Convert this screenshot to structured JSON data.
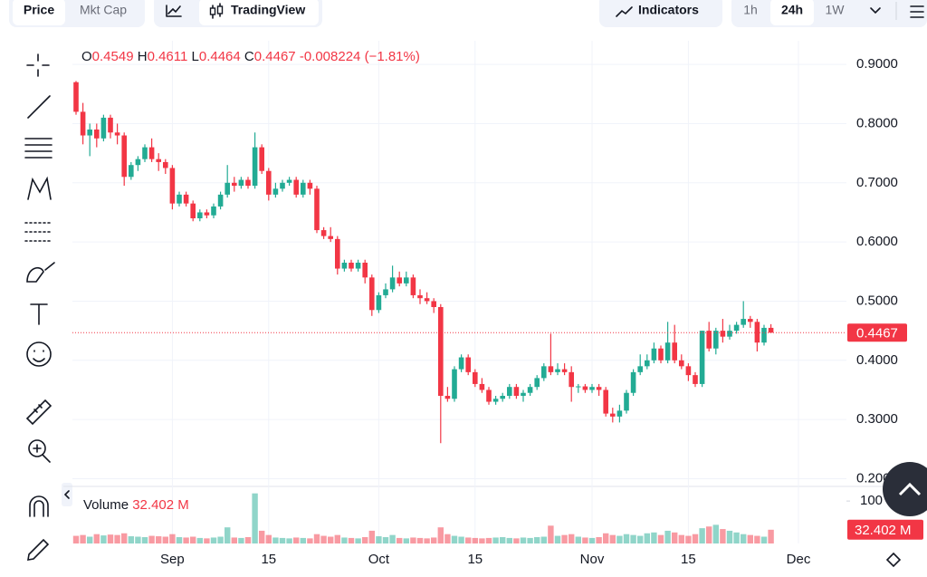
{
  "toolbar": {
    "tabs": [
      "Price",
      "Mkt Cap"
    ],
    "tradingview": "TradingView",
    "indicators": "Indicators",
    "intervals": [
      "1h",
      "24h",
      "1W"
    ]
  },
  "chart_data": {
    "type": "candlestick",
    "categories": [
      null,
      null,
      null,
      null,
      null,
      null,
      null,
      null,
      null,
      null,
      null,
      null,
      null,
      null,
      "Sep",
      null,
      null,
      null,
      null,
      null,
      null,
      null,
      null,
      null,
      null,
      null,
      null,
      null,
      "15",
      null,
      null,
      null,
      null,
      null,
      null,
      null,
      null,
      null,
      null,
      null,
      null,
      null,
      null,
      null,
      "Oct",
      null,
      null,
      null,
      null,
      null,
      null,
      null,
      null,
      null,
      null,
      null,
      null,
      null,
      "15",
      null,
      null,
      null,
      null,
      null,
      null,
      null,
      null,
      null,
      null,
      null,
      null,
      null,
      null,
      null,
      null,
      "Nov",
      null,
      null,
      null,
      null,
      null,
      null,
      null,
      null,
      null,
      null,
      null,
      null,
      null,
      "15",
      null,
      null,
      null,
      null,
      null,
      null,
      null,
      null,
      null,
      null,
      null,
      null,
      null,
      null,
      null,
      "Dec"
    ],
    "ohlc": [
      [
        0.87,
        0.872,
        0.815,
        0.82
      ],
      [
        0.82,
        0.835,
        0.765,
        0.78
      ],
      [
        0.78,
        0.8,
        0.745,
        0.79
      ],
      [
        0.79,
        0.8,
        0.76,
        0.775
      ],
      [
        0.775,
        0.815,
        0.77,
        0.81
      ],
      [
        0.81,
        0.815,
        0.775,
        0.785
      ],
      [
        0.785,
        0.8,
        0.765,
        0.78
      ],
      [
        0.78,
        0.785,
        0.695,
        0.71
      ],
      [
        0.71,
        0.735,
        0.705,
        0.73
      ],
      [
        0.73,
        0.745,
        0.72,
        0.74
      ],
      [
        0.74,
        0.765,
        0.735,
        0.76
      ],
      [
        0.76,
        0.775,
        0.735,
        0.74
      ],
      [
        0.74,
        0.75,
        0.72,
        0.735
      ],
      [
        0.735,
        0.74,
        0.715,
        0.725
      ],
      [
        0.725,
        0.73,
        0.655,
        0.665
      ],
      [
        0.665,
        0.685,
        0.66,
        0.68
      ],
      [
        0.68,
        0.685,
        0.66,
        0.665
      ],
      [
        0.665,
        0.67,
        0.635,
        0.64
      ],
      [
        0.64,
        0.655,
        0.635,
        0.65
      ],
      [
        0.65,
        0.655,
        0.64,
        0.645
      ],
      [
        0.645,
        0.665,
        0.64,
        0.66
      ],
      [
        0.66,
        0.685,
        0.655,
        0.68
      ],
      [
        0.68,
        0.73,
        0.675,
        0.7
      ],
      [
        0.7,
        0.71,
        0.685,
        0.695
      ],
      [
        0.695,
        0.71,
        0.69,
        0.705
      ],
      [
        0.705,
        0.71,
        0.69,
        0.695
      ],
      [
        0.695,
        0.785,
        0.69,
        0.76
      ],
      [
        0.76,
        0.765,
        0.715,
        0.72
      ],
      [
        0.72,
        0.725,
        0.67,
        0.68
      ],
      [
        0.68,
        0.7,
        0.675,
        0.69
      ],
      [
        0.69,
        0.705,
        0.685,
        0.7
      ],
      [
        0.7,
        0.71,
        0.695,
        0.705
      ],
      [
        0.705,
        0.71,
        0.675,
        0.68
      ],
      [
        0.68,
        0.705,
        0.675,
        0.7
      ],
      [
        0.7,
        0.705,
        0.68,
        0.69
      ],
      [
        0.69,
        0.695,
        0.615,
        0.62
      ],
      [
        0.62,
        0.625,
        0.605,
        0.61
      ],
      [
        0.61,
        0.625,
        0.6,
        0.605
      ],
      [
        0.605,
        0.61,
        0.545,
        0.555
      ],
      [
        0.555,
        0.57,
        0.55,
        0.565
      ],
      [
        0.565,
        0.57,
        0.55,
        0.555
      ],
      [
        0.555,
        0.57,
        0.55,
        0.565
      ],
      [
        0.565,
        0.57,
        0.53,
        0.54
      ],
      [
        0.54,
        0.545,
        0.475,
        0.485
      ],
      [
        0.485,
        0.515,
        0.48,
        0.51
      ],
      [
        0.51,
        0.53,
        0.505,
        0.52
      ],
      [
        0.52,
        0.56,
        0.515,
        0.54
      ],
      [
        0.54,
        0.55,
        0.525,
        0.53
      ],
      [
        0.53,
        0.55,
        0.525,
        0.54
      ],
      [
        0.54,
        0.545,
        0.505,
        0.51
      ],
      [
        0.51,
        0.52,
        0.495,
        0.505
      ],
      [
        0.505,
        0.515,
        0.495,
        0.5
      ],
      [
        0.5,
        0.505,
        0.48,
        0.49
      ],
      [
        0.49,
        0.495,
        0.26,
        0.34
      ],
      [
        0.34,
        0.355,
        0.33,
        0.335
      ],
      [
        0.335,
        0.39,
        0.33,
        0.385
      ],
      [
        0.385,
        0.41,
        0.38,
        0.405
      ],
      [
        0.405,
        0.41,
        0.375,
        0.38
      ],
      [
        0.38,
        0.385,
        0.355,
        0.36
      ],
      [
        0.36,
        0.37,
        0.345,
        0.35
      ],
      [
        0.35,
        0.355,
        0.325,
        0.33
      ],
      [
        0.33,
        0.34,
        0.325,
        0.335
      ],
      [
        0.335,
        0.345,
        0.33,
        0.34
      ],
      [
        0.34,
        0.36,
        0.335,
        0.355
      ],
      [
        0.355,
        0.36,
        0.335,
        0.34
      ],
      [
        0.34,
        0.35,
        0.33,
        0.345
      ],
      [
        0.345,
        0.36,
        0.34,
        0.355
      ],
      [
        0.355,
        0.375,
        0.35,
        0.37
      ],
      [
        0.37,
        0.395,
        0.365,
        0.39
      ],
      [
        0.39,
        0.445,
        0.375,
        0.38
      ],
      [
        0.38,
        0.395,
        0.375,
        0.385
      ],
      [
        0.385,
        0.395,
        0.375,
        0.38
      ],
      [
        0.38,
        0.39,
        0.33,
        0.355
      ],
      [
        0.355,
        0.36,
        0.345,
        0.356
      ],
      [
        0.356,
        0.36,
        0.345,
        0.35
      ],
      [
        0.35,
        0.36,
        0.345,
        0.355
      ],
      [
        0.355,
        0.36,
        0.34,
        0.35
      ],
      [
        0.35,
        0.355,
        0.305,
        0.31
      ],
      [
        0.31,
        0.32,
        0.295,
        0.305
      ],
      [
        0.305,
        0.325,
        0.295,
        0.315
      ],
      [
        0.315,
        0.35,
        0.31,
        0.345
      ],
      [
        0.345,
        0.385,
        0.34,
        0.38
      ],
      [
        0.38,
        0.41,
        0.375,
        0.39
      ],
      [
        0.39,
        0.41,
        0.385,
        0.4
      ],
      [
        0.4,
        0.43,
        0.395,
        0.42
      ],
      [
        0.42,
        0.425,
        0.395,
        0.4
      ],
      [
        0.4,
        0.465,
        0.395,
        0.43
      ],
      [
        0.43,
        0.46,
        0.395,
        0.4
      ],
      [
        0.4,
        0.41,
        0.385,
        0.39
      ],
      [
        0.39,
        0.395,
        0.365,
        0.375
      ],
      [
        0.375,
        0.38,
        0.355,
        0.36
      ],
      [
        0.36,
        0.45,
        0.355,
        0.45
      ],
      [
        0.45,
        0.465,
        0.415,
        0.42
      ],
      [
        0.42,
        0.455,
        0.41,
        0.45
      ],
      [
        0.45,
        0.47,
        0.43,
        0.44
      ],
      [
        0.44,
        0.46,
        0.435,
        0.45
      ],
      [
        0.45,
        0.465,
        0.445,
        0.46
      ],
      [
        0.46,
        0.5,
        0.455,
        0.47
      ],
      [
        0.47,
        0.475,
        0.455,
        0.465
      ],
      [
        0.465,
        0.47,
        0.415,
        0.43
      ],
      [
        0.43,
        0.46,
        0.425,
        0.4549
      ],
      [
        0.4549,
        0.4611,
        0.4464,
        0.4467
      ],
      null,
      null,
      null,
      null
    ],
    "up_color": "#22ab94",
    "down_color": "#f23645",
    "ylim": [
      0.19,
      0.94
    ],
    "yticks": [
      {
        "value": 0.2,
        "label": "0.2000"
      },
      {
        "value": 0.3,
        "label": "0.3000"
      },
      {
        "value": 0.4,
        "label": "0.4000"
      },
      {
        "value": 0.5,
        "label": "0.5000"
      },
      {
        "value": 0.6,
        "label": "0.6000"
      },
      {
        "value": 0.7,
        "label": "0.7000"
      },
      {
        "value": 0.8,
        "label": "0.8000"
      },
      {
        "value": 0.9,
        "label": "0.9000"
      }
    ],
    "grid": true,
    "last_price": {
      "value": 0.4467,
      "label": "0.4467"
    },
    "legend": {
      "open_label": "O",
      "open": 0.4549,
      "high_label": "H",
      "high": 0.4611,
      "low_label": "L",
      "low": 0.4464,
      "close_label": "C",
      "close": 0.4467,
      "change": -0.008224,
      "change_pct": "(−1.81%)"
    },
    "volume": {
      "title": "Volume",
      "values": [
        18,
        20,
        16,
        22,
        19,
        21,
        20,
        24,
        17,
        16,
        15,
        18,
        17,
        16,
        22,
        15,
        14,
        16,
        13,
        12,
        14,
        16,
        38,
        14,
        13,
        15,
        118,
        30,
        20,
        14,
        13,
        12,
        14,
        13,
        12,
        22,
        18,
        16,
        20,
        14,
        13,
        12,
        15,
        30,
        17,
        15,
        20,
        13,
        12,
        14,
        13,
        12,
        14,
        38,
        22,
        18,
        16,
        14,
        13,
        12,
        13,
        14,
        15,
        13,
        12,
        14,
        13,
        15,
        16,
        42,
        18,
        20,
        22,
        16,
        14,
        13,
        15,
        24,
        20,
        18,
        22,
        20,
        18,
        24,
        26,
        20,
        30,
        26,
        20,
        18,
        22,
        36,
        40,
        44,
        34,
        30,
        26,
        22,
        20,
        18,
        16,
        32.402,
        null,
        null,
        null,
        null
      ],
      "last": {
        "value": 32.402,
        "label": "32.402 M"
      },
      "ylim": [
        0,
        128
      ],
      "yticks": [
        {
          "value": 100,
          "label": "100 M"
        }
      ]
    }
  }
}
